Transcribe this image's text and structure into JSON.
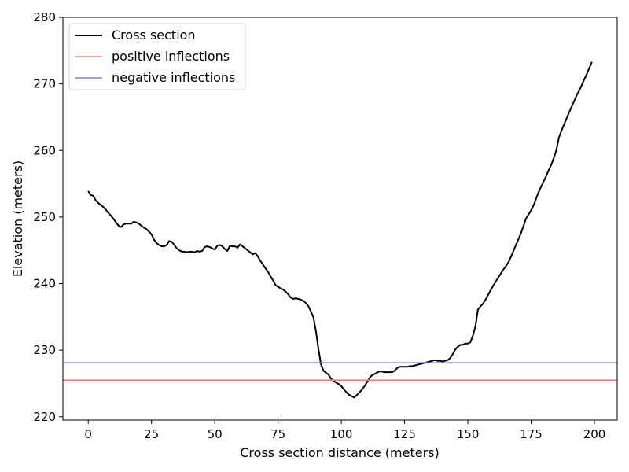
{
  "chart_data": {
    "type": "line",
    "title": "",
    "xlabel": "Cross section distance (meters)",
    "ylabel": "Elevation (meters)",
    "xlim": [
      -10,
      209
    ],
    "ylim": [
      219.5,
      280
    ],
    "xticks": [
      0,
      25,
      50,
      75,
      100,
      125,
      150,
      175,
      200
    ],
    "yticks": [
      220,
      230,
      240,
      250,
      260,
      270,
      280
    ],
    "grid": false,
    "legend_position": "top-left",
    "series": [
      {
        "name": "Cross section",
        "color": "#000000",
        "x": [
          0,
          1,
          2,
          3,
          4,
          5,
          6,
          7,
          8,
          9,
          10,
          11,
          12,
          13,
          14,
          15,
          16,
          17,
          18,
          19,
          20,
          21,
          22,
          23,
          24,
          25,
          26,
          27,
          28,
          29,
          30,
          31,
          32,
          33,
          34,
          35,
          36,
          37,
          38,
          39,
          40,
          41,
          42,
          43,
          44,
          45,
          46,
          47,
          48,
          49,
          50,
          51,
          52,
          53,
          54,
          55,
          56,
          57,
          58,
          59,
          60,
          61,
          62,
          63,
          64,
          65,
          66,
          67,
          68,
          69,
          70,
          71,
          72,
          73,
          74,
          75,
          76,
          77,
          78,
          79,
          80,
          81,
          82,
          83,
          84,
          85,
          86,
          87,
          88,
          89,
          90,
          91,
          92,
          93,
          94,
          95,
          96,
          97,
          98,
          99,
          100,
          101,
          102,
          103,
          104,
          105,
          106,
          107,
          108,
          109,
          110,
          111,
          112,
          113,
          114,
          115,
          116,
          117,
          118,
          119,
          120,
          121,
          122,
          123,
          124,
          125,
          126,
          127,
          128,
          129,
          130,
          131,
          132,
          133,
          134,
          135,
          136,
          137,
          138,
          139,
          140,
          141,
          142,
          143,
          144,
          145,
          146,
          147,
          148,
          149,
          150,
          151,
          152,
          153,
          154,
          155,
          156,
          157,
          158,
          159,
          160,
          161,
          162,
          163,
          164,
          165,
          166,
          167,
          168,
          169,
          170,
          171,
          172,
          173,
          174,
          175,
          176,
          177,
          178,
          179,
          180,
          181,
          182,
          183,
          184,
          185,
          186,
          187,
          188,
          189,
          190,
          191,
          192,
          193,
          194,
          195,
          196,
          197,
          198,
          199
        ],
        "y": [
          253.9,
          253.3,
          253.2,
          252.5,
          252.1,
          251.8,
          251.5,
          251.1,
          250.6,
          250.2,
          249.7,
          249.2,
          248.7,
          248.5,
          248.9,
          249.0,
          249.0,
          249.0,
          249.3,
          249.2,
          249.0,
          248.7,
          248.4,
          248.2,
          247.8,
          247.4,
          246.6,
          246.1,
          245.8,
          245.6,
          245.6,
          245.8,
          246.4,
          246.3,
          245.8,
          245.3,
          245.0,
          244.8,
          244.8,
          244.7,
          244.8,
          244.8,
          244.7,
          244.9,
          244.8,
          244.9,
          245.5,
          245.6,
          245.5,
          245.3,
          245.1,
          245.7,
          245.8,
          245.6,
          245.2,
          244.9,
          245.7,
          245.6,
          245.6,
          245.4,
          245.9,
          245.6,
          245.3,
          245.0,
          244.7,
          244.4,
          244.6,
          244.1,
          243.4,
          242.9,
          242.3,
          241.8,
          241.1,
          240.5,
          239.8,
          239.5,
          239.3,
          239.1,
          238.8,
          238.4,
          237.9,
          237.7,
          237.8,
          237.7,
          237.6,
          237.4,
          237.1,
          236.6,
          235.8,
          234.9,
          232.8,
          230.1,
          227.8,
          226.9,
          226.6,
          226.3,
          225.7,
          225.4,
          225.1,
          224.9,
          224.6,
          224.1,
          223.7,
          223.3,
          223.1,
          222.9,
          223.2,
          223.6,
          224.0,
          224.5,
          225.1,
          225.7,
          226.2,
          226.4,
          226.6,
          226.8,
          226.8,
          226.7,
          226.7,
          226.7,
          226.7,
          226.9,
          227.3,
          227.5,
          227.5,
          227.5,
          227.5,
          227.6,
          227.6,
          227.7,
          227.8,
          227.9,
          228.0,
          228.1,
          228.2,
          228.3,
          228.4,
          228.5,
          228.4,
          228.4,
          228.3,
          228.4,
          228.5,
          228.8,
          229.4,
          230.1,
          230.5,
          230.8,
          230.8,
          231.0,
          231.0,
          231.2,
          232.2,
          233.6,
          236.1,
          236.6,
          237.0,
          237.6,
          238.3,
          239.0,
          239.7,
          240.3,
          240.9,
          241.5,
          242.1,
          242.6,
          243.2,
          244.0,
          244.9,
          245.8,
          246.7,
          247.6,
          248.7,
          249.8,
          250.4,
          251.0,
          251.8,
          252.8,
          253.8,
          254.6,
          255.4,
          256.2,
          257.1,
          257.9,
          258.9,
          260.1,
          262.0,
          263.0,
          263.9,
          264.8,
          265.7,
          266.6,
          267.4,
          268.3,
          269.0,
          269.8,
          270.7,
          271.5,
          272.4,
          273.3
        ]
      },
      {
        "name": "positive inflections",
        "color": "#f08080",
        "hline": 225.5
      },
      {
        "name": "negative inflections",
        "color": "#8080d0",
        "hline": 228.1
      }
    ]
  }
}
